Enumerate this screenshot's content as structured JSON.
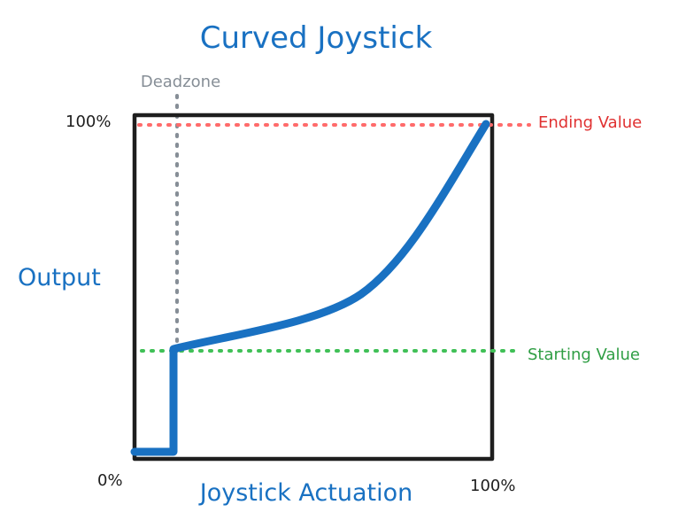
{
  "title": "Curved Joystick",
  "x_axis": {
    "label": "Joystick Actuation",
    "min_label": "0%",
    "max_label": "100%"
  },
  "y_axis": {
    "label": "Output",
    "max_label": "100%"
  },
  "annotations": {
    "deadzone": "Deadzone",
    "ending_value": "Ending Value",
    "starting_value": "Starting Value"
  },
  "colors": {
    "curve": "#1971c2",
    "title": "#1971c2",
    "frame": "#1e1e1e",
    "deadzone": "#868e96",
    "ending_value": "#ff6b6b",
    "starting_value": "#40c057"
  }
}
